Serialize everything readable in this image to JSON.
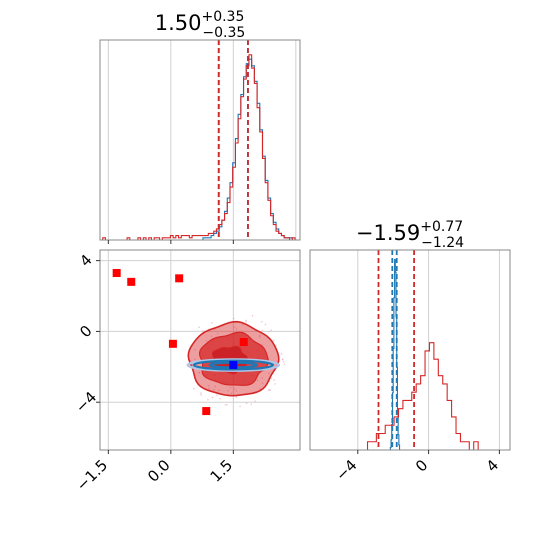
{
  "chart_data": [
    {
      "panel": "top-left",
      "type": "histogram",
      "title": {
        "main": "1.50",
        "sup": "+0.35",
        "sub": "−0.35"
      },
      "xlim": [
        -1.7,
        3.1
      ],
      "grid": true,
      "bin_edges_start": -1.7,
      "bin_width": 0.065,
      "series": [
        {
          "color": "#1f77b4",
          "counts": [
            0,
            0,
            0,
            0,
            0,
            0,
            0,
            0,
            0,
            0,
            0,
            0,
            0,
            0,
            0,
            0,
            0,
            0,
            0,
            0,
            0,
            0,
            0,
            0,
            0,
            0,
            0,
            0,
            0,
            0,
            0,
            0,
            0,
            0,
            0,
            0,
            0,
            0,
            1,
            1,
            1,
            2,
            3,
            4,
            6,
            9,
            13,
            19,
            26,
            35,
            46,
            57,
            66,
            74,
            80,
            82,
            79,
            72,
            62,
            50,
            38,
            27,
            19,
            12,
            8,
            5,
            3,
            2,
            1,
            1,
            1,
            0,
            0,
            0
          ]
        },
        {
          "color": "#d62728",
          "counts": [
            0,
            1,
            0,
            0,
            0,
            0,
            0,
            0,
            0,
            0,
            1,
            0,
            0,
            0,
            1,
            0,
            1,
            0,
            1,
            0,
            1,
            1,
            0,
            1,
            1,
            1,
            2,
            1,
            2,
            1,
            2,
            2,
            2,
            1,
            2,
            2,
            2,
            2,
            2,
            2,
            3,
            3,
            4,
            5,
            7,
            9,
            12,
            17,
            24,
            33,
            44,
            55,
            65,
            73,
            79,
            84,
            78,
            71,
            60,
            49,
            37,
            26,
            18,
            11,
            7,
            4,
            3,
            2,
            1,
            1,
            0,
            1,
            0,
            0
          ]
        }
      ],
      "ref_lines": [
        {
          "x": 1.15,
          "color": "#1f77b4"
        },
        {
          "x": 1.85,
          "color": "#1f77b4"
        },
        {
          "x": 1.15,
          "color": "#d62728"
        },
        {
          "x": 1.85,
          "color": "#d62728"
        }
      ]
    },
    {
      "panel": "bottom-left",
      "type": "contour-scatter",
      "xlim": [
        -1.7,
        3.1
      ],
      "ylim": [
        -6.7,
        4.6
      ],
      "xticks": [
        "−1.5",
        "0.0",
        "1.5"
      ],
      "xtick_values": [
        -1.5,
        0.0,
        1.5
      ],
      "yticks": [
        "4",
        "0",
        "−4"
      ],
      "ytick_values": [
        4,
        0,
        -4
      ],
      "grid": true,
      "red_density_center": [
        1.5,
        -1.6
      ],
      "red_density_spread": [
        0.95,
        2.1
      ],
      "blue_density_center": [
        1.5,
        -1.9
      ],
      "blue_density_spread": [
        0.95,
        0.35
      ],
      "red_outliers": [
        {
          "x": -1.3,
          "y": 3.3
        },
        {
          "x": -0.95,
          "y": 2.8
        },
        {
          "x": 0.2,
          "y": 3.0
        },
        {
          "x": 0.05,
          "y": -0.7
        },
        {
          "x": 0.85,
          "y": -4.5
        },
        {
          "x": 1.75,
          "y": -0.6
        }
      ],
      "marker": {
        "x": 1.5,
        "y": -1.9,
        "color": "#0000ff"
      },
      "colors": {
        "red": "#d62728",
        "blue": "#1f77b4"
      }
    },
    {
      "panel": "bottom-right",
      "type": "histogram",
      "title": {
        "main": "−1.59",
        "sup": "+0.77",
        "sub": "−1.24"
      },
      "xlim": [
        -6.7,
        4.6
      ],
      "xticks": [
        "−4",
        "0",
        "4"
      ],
      "xtick_values": [
        -4,
        0,
        4
      ],
      "grid": true,
      "series": [
        {
          "color": "#1f77b4",
          "centers": [
            -2.14,
            -2.1,
            -2.06,
            -2.02,
            -1.98,
            -1.94,
            -1.9,
            -1.86,
            -1.82,
            -1.78,
            -1.74,
            -1.7,
            -1.66
          ],
          "counts": [
            2,
            8,
            20,
            45,
            80,
            120,
            150,
            140,
            105,
            65,
            30,
            12,
            4
          ]
        },
        {
          "color": "#d62728",
          "bin_start": -6.7,
          "bin_width": 0.25,
          "counts": [
            0,
            0,
            0,
            0,
            0,
            0,
            0,
            0,
            0,
            0,
            0,
            0,
            0,
            1,
            1,
            2,
            2,
            3,
            3,
            4,
            5,
            6,
            6,
            7,
            8,
            9,
            12,
            13,
            11,
            9,
            8,
            6,
            4,
            2,
            1,
            1,
            0,
            1,
            0,
            0,
            0,
            0,
            0,
            0,
            0
          ]
        }
      ],
      "ref_lines": [
        {
          "x": -2.83,
          "color": "#d62728"
        },
        {
          "x": -0.82,
          "color": "#d62728"
        },
        {
          "x": -2.05,
          "color": "#1f77b4"
        },
        {
          "x": -1.8,
          "color": "#1f77b4"
        }
      ]
    }
  ]
}
